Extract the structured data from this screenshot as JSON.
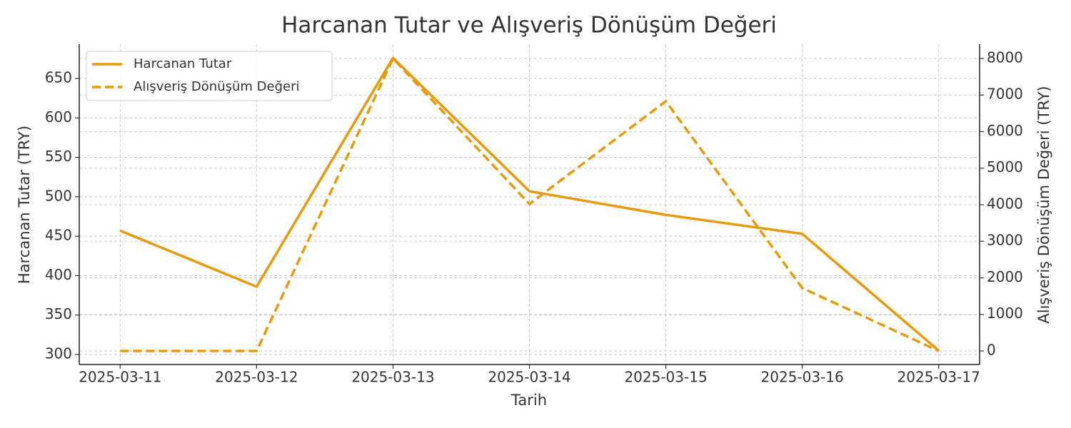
{
  "chart_data": {
    "type": "line",
    "title": "Harcanan Tutar ve Alışveriş Dönüşüm Değeri",
    "x_label": "Tarih",
    "y_label": "Harcanan Tutar (TRY)",
    "y2_label": "Alışveriş Dönüşüm Değeri (TRY)",
    "categories": [
      "2025-03-11",
      "2025-03-12",
      "2025-03-13",
      "2025-03-14",
      "2025-03-15",
      "2025-03-16",
      "2025-03-17"
    ],
    "series": [
      {
        "name": "Harcanan Tutar",
        "color": "#e8990c",
        "dash": false,
        "values": [
          457,
          386,
          676,
          507,
          477,
          453,
          305
        ]
      },
      {
        "name": "Alışveriş Dönüşüm Değeri",
        "color": "#e8990c",
        "dash": true,
        "axis": "y2",
        "values": [
          0,
          0,
          8000,
          4020,
          6830,
          1720,
          0
        ]
      }
    ],
    "ylim": [
      287.3,
      693.4
    ],
    "yticks": [
      300,
      350,
      400,
      450,
      500,
      550,
      600,
      650
    ],
    "y2lim": [
      -371,
      8390
    ],
    "y2ticks": [
      0,
      1000,
      2000,
      3000,
      4000,
      5000,
      6000,
      7000,
      8000
    ],
    "grid": true,
    "legend": "upper left"
  }
}
